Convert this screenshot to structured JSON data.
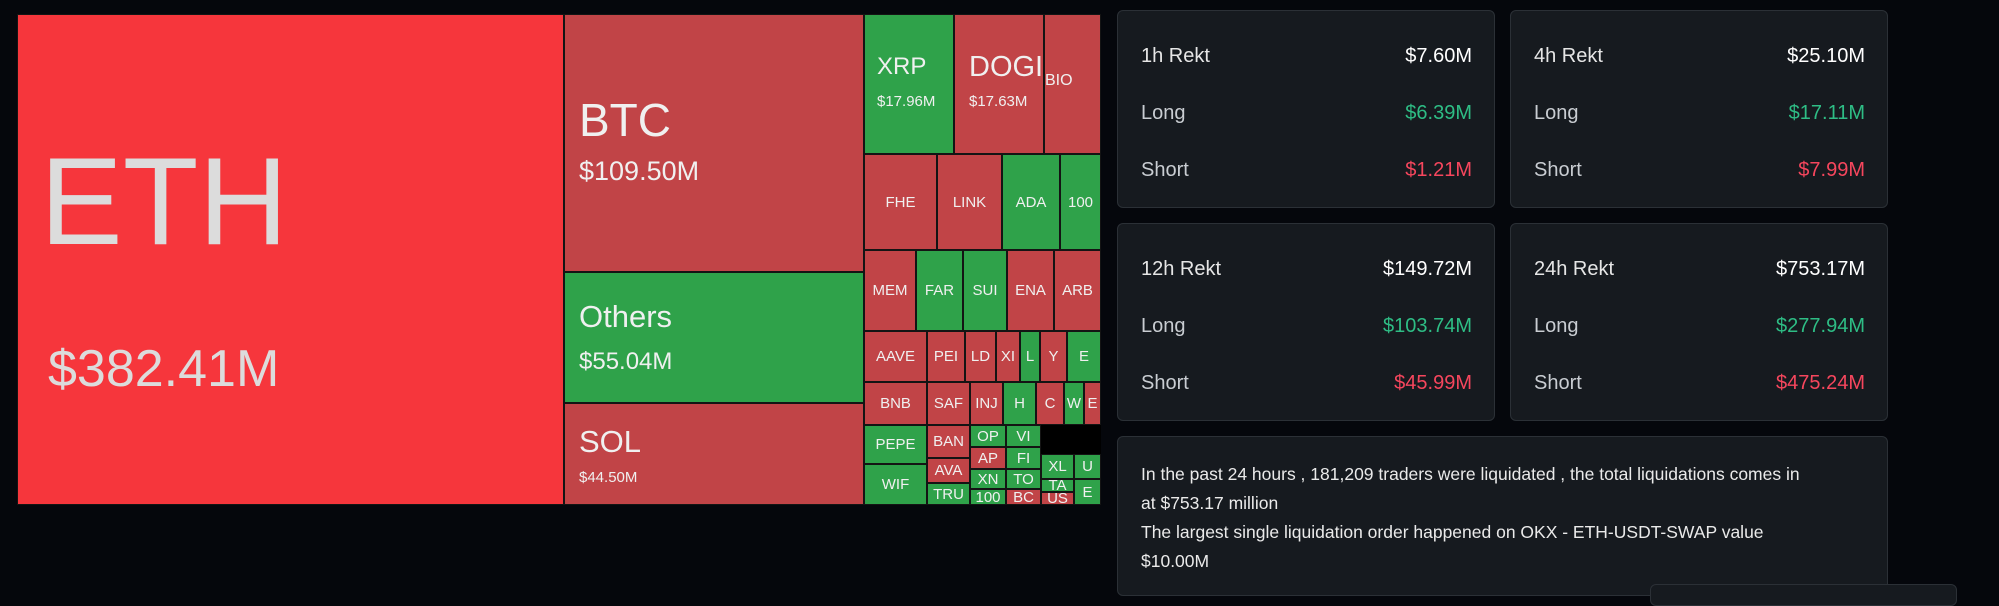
{
  "treemap": {
    "colors": {
      "red_bright": "#f6363c",
      "red": "#c14447",
      "green": "#2fa24a"
    },
    "tiles": [
      {
        "symbol": "ETH",
        "amount": "$382.41M",
        "color": "red_bright"
      },
      {
        "symbol": "BTC",
        "amount": "$109.50M",
        "color": "red"
      },
      {
        "symbol": "Others",
        "amount": "$55.04M",
        "color": "green"
      },
      {
        "symbol": "SOL",
        "amount": "$44.50M",
        "color": "red"
      },
      {
        "symbol": "XRP",
        "amount": "$17.96M",
        "color": "green"
      },
      {
        "symbol": "DOGI",
        "amount": "$17.63M",
        "color": "red"
      },
      {
        "symbol": "BIO",
        "color": "red"
      },
      {
        "symbol": "FHE",
        "color": "red"
      },
      {
        "symbol": "LINK",
        "color": "red"
      },
      {
        "symbol": "ADA",
        "color": "green"
      },
      {
        "symbol": "100",
        "color": "green"
      },
      {
        "symbol": "MEM",
        "color": "red"
      },
      {
        "symbol": "FAR",
        "color": "green"
      },
      {
        "symbol": "SUI",
        "color": "green"
      },
      {
        "symbol": "ENA",
        "color": "red"
      },
      {
        "symbol": "ARB",
        "color": "red"
      },
      {
        "symbol": "AAVE",
        "color": "red"
      },
      {
        "symbol": "PEI",
        "color": "red"
      },
      {
        "symbol": "LD",
        "color": "red"
      },
      {
        "symbol": "XI",
        "color": "red"
      },
      {
        "symbol": "L",
        "color": "green"
      },
      {
        "symbol": "Y",
        "color": "red"
      },
      {
        "symbol": "E",
        "color": "green"
      },
      {
        "symbol": "BNB",
        "color": "red"
      },
      {
        "symbol": "SAF",
        "color": "red"
      },
      {
        "symbol": "INJ",
        "color": "red"
      },
      {
        "symbol": "H",
        "color": "green"
      },
      {
        "symbol": "C",
        "color": "red"
      },
      {
        "symbol": "W",
        "color": "green"
      },
      {
        "symbol": "E",
        "color": "red"
      },
      {
        "symbol": "BAN",
        "color": "red"
      },
      {
        "symbol": "OP",
        "color": "green"
      },
      {
        "symbol": "VI",
        "color": "green"
      },
      {
        "symbol": "PEPE",
        "color": "green"
      },
      {
        "symbol": "AP",
        "color": "red"
      },
      {
        "symbol": "FI",
        "color": "green"
      },
      {
        "symbol": "AVA",
        "color": "red"
      },
      {
        "symbol": "XN",
        "color": "green"
      },
      {
        "symbol": "TO",
        "color": "green"
      },
      {
        "symbol": "XL",
        "color": "green"
      },
      {
        "symbol": "U",
        "color": "green"
      },
      {
        "symbol": "WIF",
        "color": "green"
      },
      {
        "symbol": "TRU",
        "color": "green"
      },
      {
        "symbol": "100",
        "color": "green"
      },
      {
        "symbol": "BC",
        "color": "red"
      },
      {
        "symbol": "TA",
        "color": "green"
      },
      {
        "symbol": "US",
        "color": "red"
      },
      {
        "symbol": "E",
        "color": "green"
      }
    ]
  },
  "stats": {
    "h1": {
      "title": "1h Rekt",
      "total": "$7.60M",
      "long_label": "Long",
      "long": "$6.39M",
      "short_label": "Short",
      "short": "$1.21M"
    },
    "h4": {
      "title": "4h Rekt",
      "total": "$25.10M",
      "long_label": "Long",
      "long": "$17.11M",
      "short_label": "Short",
      "short": "$7.99M"
    },
    "h12": {
      "title": "12h Rekt",
      "total": "$149.72M",
      "long_label": "Long",
      "long": "$103.74M",
      "short_label": "Short",
      "short": "$45.99M"
    },
    "h24": {
      "title": "24h Rekt",
      "total": "$753.17M",
      "long_label": "Long",
      "long": "$277.94M",
      "short_label": "Short",
      "short": "$475.24M"
    }
  },
  "summary": {
    "line1": "In the past 24 hours , 181,209 traders were liquidated , the total liquidations comes in",
    "line2": "at $753.17 million",
    "line3": "The largest single liquidation order happened on OKX - ETH-USDT-SWAP value",
    "line4": "$10.00M"
  }
}
